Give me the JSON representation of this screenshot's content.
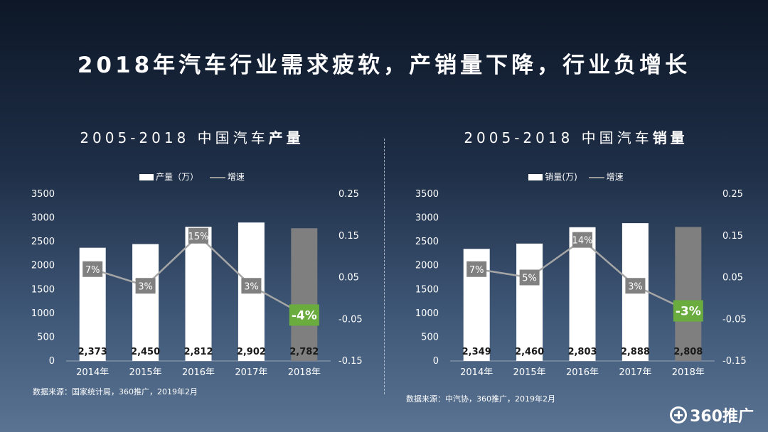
{
  "title": "2018年汽车行业需求疲软，产销量下降，行业负增长",
  "logo_text": "360推广",
  "colors": {
    "bar": "#ffffff",
    "bar_last": "#7f7f7f",
    "line": "#a6a6a6",
    "label_box": "#808080",
    "highlight": "#6aac3e"
  },
  "chart_data": [
    {
      "type": "bar",
      "title_prefix": "2005-2018 中国汽车",
      "title_bold": "产量",
      "legend": {
        "bar": "产量（万）",
        "line": "增速"
      },
      "categories": [
        "2014年",
        "2015年",
        "2016年",
        "2017年",
        "2018年"
      ],
      "values": [
        2373,
        2450,
        2812,
        2902,
        2782
      ],
      "value_labels": [
        "2,373",
        "2,450",
        "2,812",
        "2,902",
        "2,782"
      ],
      "growth": [
        0.07,
        0.03,
        0.15,
        0.03,
        -0.04
      ],
      "growth_labels": [
        "7%",
        "3%",
        "15%",
        "3%",
        "-4%"
      ],
      "ylim": [
        0,
        3500
      ],
      "y_ticks": [
        "0",
        "500",
        "1000",
        "1500",
        "2000",
        "2500",
        "3000",
        "3500"
      ],
      "y2lim": [
        -0.15,
        0.25
      ],
      "y2_ticks": [
        "-0.15",
        "-0.05",
        "0.05",
        "0.15",
        "0.25"
      ],
      "source": "数据来源：国家统计局，360推广，2019年2月"
    },
    {
      "type": "bar",
      "title_prefix": "2005-2018 中国汽车",
      "title_bold": "销量",
      "legend": {
        "bar": "销量(万)",
        "line": "增速"
      },
      "categories": [
        "2014年",
        "2015年",
        "2016年",
        "2017年",
        "2018年"
      ],
      "values": [
        2349,
        2460,
        2803,
        2888,
        2808
      ],
      "value_labels": [
        "2,349",
        "2,460",
        "2,803",
        "2,888",
        "2,808"
      ],
      "growth": [
        0.07,
        0.05,
        0.14,
        0.03,
        -0.03
      ],
      "growth_labels": [
        "7%",
        "5%",
        "14%",
        "3%",
        "-3%"
      ],
      "ylim": [
        0,
        3500
      ],
      "y_ticks": [
        "0",
        "500",
        "1000",
        "1500",
        "2000",
        "2500",
        "3000",
        "3500"
      ],
      "y2lim": [
        -0.15,
        0.25
      ],
      "y2_ticks": [
        "-0.15",
        "-0.05",
        "0.05",
        "0.15",
        "0.25"
      ],
      "source": "数据来源：中汽协，360推广，2019年2月"
    }
  ]
}
